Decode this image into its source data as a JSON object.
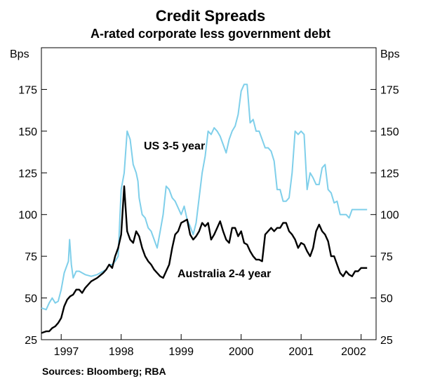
{
  "chart_data": {
    "type": "line",
    "title": "Credit Spreads",
    "subtitle": "A-rated corporate less government debt",
    "ylabel_left": "Bps",
    "ylabel_right": "Bps",
    "xlabel": "",
    "ylim": [
      25,
      200
    ],
    "yticks": [
      25,
      50,
      75,
      100,
      125,
      150,
      175
    ],
    "ytick_labels": [
      "25",
      "50",
      "75",
      "100",
      "125",
      "150",
      "175"
    ],
    "xlim": [
      1996.67,
      2002.25
    ],
    "xticks": [
      1997,
      1998,
      1999,
      2000,
      2001,
      2002
    ],
    "xtick_labels": [
      "1997",
      "1998",
      "1999",
      "2000",
      "2001",
      "2002"
    ],
    "grid": false,
    "source": "Sources: Bloomberg; RBA",
    "series": [
      {
        "name": "US 3-5 year",
        "color": "#7fcfea",
        "x": [
          1996.67,
          1996.75,
          1996.8,
          1996.85,
          1996.9,
          1996.95,
          1997.0,
          1997.05,
          1997.1,
          1997.12,
          1997.14,
          1997.17,
          1997.2,
          1997.25,
          1997.3,
          1997.4,
          1997.5,
          1997.6,
          1997.7,
          1997.75,
          1997.8,
          1997.85,
          1997.9,
          1997.95,
          1998.0,
          1998.05,
          1998.1,
          1998.15,
          1998.2,
          1998.25,
          1998.28,
          1998.3,
          1998.35,
          1998.4,
          1998.45,
          1998.5,
          1998.55,
          1998.6,
          1998.65,
          1998.7,
          1998.75,
          1998.8,
          1998.85,
          1998.9,
          1998.95,
          1999.0,
          1999.05,
          1999.1,
          1999.15,
          1999.2,
          1999.25,
          1999.3,
          1999.35,
          1999.4,
          1999.45,
          1999.5,
          1999.55,
          1999.6,
          1999.65,
          1999.7,
          1999.75,
          1999.8,
          1999.85,
          1999.9,
          1999.95,
          2000.0,
          2000.05,
          2000.1,
          2000.15,
          2000.2,
          2000.25,
          2000.3,
          2000.35,
          2000.4,
          2000.45,
          2000.5,
          2000.55,
          2000.6,
          2000.65,
          2000.7,
          2000.75,
          2000.8,
          2000.85,
          2000.9,
          2000.95,
          2001.0,
          2001.05,
          2001.1,
          2001.15,
          2001.2,
          2001.25,
          2001.3,
          2001.35,
          2001.4,
          2001.45,
          2001.5,
          2001.55,
          2001.6,
          2001.65,
          2001.7,
          2001.75,
          2001.8,
          2001.85,
          2001.9,
          2001.95,
          2002.0,
          2002.03,
          2002.06,
          2002.08,
          2002.1
        ],
        "y": [
          44,
          43,
          47,
          50,
          47,
          48,
          55,
          65,
          70,
          72,
          85,
          70,
          62,
          66,
          66,
          64,
          63,
          64,
          66,
          67,
          70,
          70,
          72,
          75,
          115,
          125,
          150,
          145,
          130,
          125,
          120,
          110,
          100,
          98,
          92,
          90,
          85,
          80,
          90,
          100,
          117,
          115,
          110,
          108,
          104,
          100,
          105,
          97,
          93,
          88,
          95,
          110,
          125,
          135,
          150,
          148,
          152,
          150,
          147,
          142,
          137,
          145,
          150,
          153,
          160,
          174,
          178,
          178,
          155,
          157,
          150,
          150,
          145,
          140,
          140,
          138,
          132,
          115,
          115,
          108,
          108,
          110,
          125,
          150,
          148,
          150,
          148,
          115,
          125,
          122,
          118,
          118,
          128,
          130,
          115,
          113,
          107,
          108,
          100,
          100,
          100,
          98,
          103,
          103,
          103,
          103,
          103,
          103,
          103,
          103
        ],
        "y_note": "estimated"
      },
      {
        "name": "Australia 2-4 year",
        "color": "#000000",
        "x": [
          1996.67,
          1996.75,
          1996.8,
          1996.85,
          1996.9,
          1996.95,
          1997.0,
          1997.05,
          1997.1,
          1997.15,
          1997.2,
          1997.25,
          1997.3,
          1997.35,
          1997.4,
          1997.5,
          1997.6,
          1997.7,
          1997.75,
          1997.8,
          1997.85,
          1997.9,
          1997.95,
          1998.0,
          1998.05,
          1998.1,
          1998.15,
          1998.2,
          1998.25,
          1998.3,
          1998.35,
          1998.4,
          1998.45,
          1998.5,
          1998.55,
          1998.6,
          1998.65,
          1998.7,
          1998.75,
          1998.8,
          1998.85,
          1998.9,
          1998.95,
          1999.0,
          1999.05,
          1999.1,
          1999.15,
          1999.2,
          1999.25,
          1999.3,
          1999.35,
          1999.4,
          1999.45,
          1999.5,
          1999.55,
          1999.6,
          1999.65,
          1999.7,
          1999.75,
          1999.8,
          1999.85,
          1999.9,
          1999.95,
          2000.0,
          2000.05,
          2000.1,
          2000.15,
          2000.2,
          2000.25,
          2000.3,
          2000.35,
          2000.4,
          2000.45,
          2000.5,
          2000.55,
          2000.6,
          2000.65,
          2000.7,
          2000.75,
          2000.8,
          2000.85,
          2000.9,
          2000.95,
          2001.0,
          2001.05,
          2001.1,
          2001.15,
          2001.2,
          2001.25,
          2001.3,
          2001.35,
          2001.4,
          2001.45,
          2001.5,
          2001.55,
          2001.6,
          2001.65,
          2001.7,
          2001.75,
          2001.8,
          2001.85,
          2001.9,
          2001.95,
          2002.0,
          2002.03,
          2002.06,
          2002.1
        ],
        "y": [
          29,
          30,
          30,
          32,
          33,
          35,
          38,
          45,
          49,
          51,
          52,
          55,
          55,
          53,
          56,
          60,
          62,
          65,
          67,
          70,
          68,
          75,
          80,
          88,
          117,
          90,
          85,
          83,
          90,
          87,
          80,
          75,
          72,
          70,
          67,
          65,
          63,
          62,
          66,
          70,
          80,
          88,
          90,
          95,
          96,
          97,
          88,
          85,
          87,
          90,
          95,
          93,
          95,
          85,
          88,
          92,
          96,
          90,
          85,
          83,
          92,
          92,
          87,
          90,
          83,
          82,
          78,
          75,
          73,
          73,
          72,
          88,
          90,
          92,
          90,
          92,
          92,
          95,
          95,
          90,
          88,
          85,
          80,
          83,
          82,
          78,
          75,
          80,
          90,
          94,
          90,
          88,
          84,
          75,
          75,
          70,
          65,
          63,
          66,
          64,
          63,
          66,
          66,
          68,
          68,
          68,
          68
        ],
        "y_note": "estimated"
      }
    ],
    "annotations": [
      {
        "text": "US 3-5 year",
        "series": "US 3-5 year"
      },
      {
        "text": "Australia 2-4 year",
        "series": "Australia 2-4 year"
      }
    ]
  }
}
